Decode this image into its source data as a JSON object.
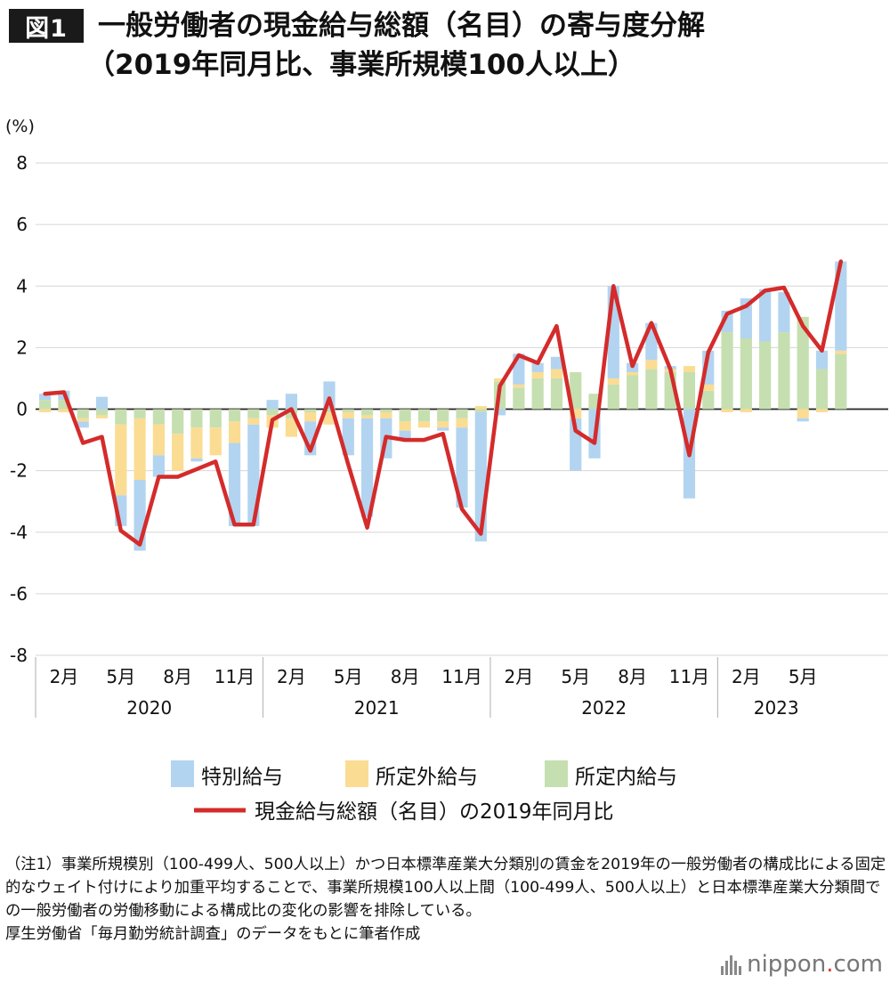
{
  "title": {
    "badge": "図1",
    "line1": "一般労働者の現金給与総額（名目）の寄与度分解",
    "line2": "（2019年同月比、事業所規模100人以上）"
  },
  "chart_data": {
    "type": "bar",
    "stacked": true,
    "unit_label": "(%)",
    "ylim": [
      -8,
      8
    ],
    "yticks": [
      8,
      6,
      4,
      2,
      0,
      -2,
      -4,
      -6,
      -8
    ],
    "x_month_labels": [
      {
        "index": 1,
        "label": "2月"
      },
      {
        "index": 4,
        "label": "5月"
      },
      {
        "index": 7,
        "label": "8月"
      },
      {
        "index": 10,
        "label": "11月"
      },
      {
        "index": 13,
        "label": "2月"
      },
      {
        "index": 16,
        "label": "5月"
      },
      {
        "index": 19,
        "label": "8月"
      },
      {
        "index": 22,
        "label": "11月"
      },
      {
        "index": 25,
        "label": "2月"
      },
      {
        "index": 28,
        "label": "5月"
      },
      {
        "index": 31,
        "label": "8月"
      },
      {
        "index": 34,
        "label": "11月"
      },
      {
        "index": 37,
        "label": "2月"
      },
      {
        "index": 40,
        "label": "5月"
      }
    ],
    "x_year_groups": [
      {
        "label": "2020",
        "start": 0,
        "count": 12
      },
      {
        "label": "2021",
        "start": 12,
        "count": 12
      },
      {
        "label": "2022",
        "start": 24,
        "count": 12
      },
      {
        "label": "2023",
        "start": 36,
        "count": 7
      }
    ],
    "series": [
      {
        "name": "所定内給与",
        "color": "#c6dfb0",
        "values": [
          0.3,
          0.3,
          -0.3,
          -0.2,
          -0.5,
          -0.3,
          -0.5,
          -0.8,
          -0.6,
          -0.6,
          -0.4,
          -0.3,
          -0.2,
          -0.3,
          -0.1,
          -0.1,
          -0.1,
          -0.2,
          -0.1,
          -0.4,
          -0.4,
          -0.4,
          -0.3,
          -0.1,
          0.9,
          0.7,
          1.0,
          1.0,
          1.2,
          0.5,
          0.8,
          1.1,
          1.3,
          1.2,
          1.2,
          0.6,
          2.5,
          2.3,
          2.2,
          2.5,
          3.0,
          1.3,
          1.8
        ]
      },
      {
        "name": "所定外給与",
        "color": "#fbdc93",
        "values": [
          -0.1,
          -0.1,
          -0.1,
          -0.1,
          -2.3,
          -2.0,
          -1.0,
          -1.2,
          -1.0,
          -0.9,
          -0.7,
          -0.2,
          -0.4,
          -0.6,
          -0.3,
          -0.4,
          -0.2,
          -0.1,
          -0.2,
          -0.3,
          -0.2,
          -0.2,
          -0.3,
          0.1,
          0.1,
          0.1,
          0.2,
          0.3,
          -0.3,
          0.0,
          0.2,
          0.1,
          0.3,
          0.1,
          0.2,
          0.2,
          -0.1,
          -0.1,
          0.0,
          0.0,
          -0.3,
          -0.1,
          0.1
        ]
      },
      {
        "name": "特別給与",
        "color": "#b2d4f0",
        "values": [
          0.2,
          0.3,
          -0.2,
          0.4,
          -1.0,
          -2.3,
          -0.7,
          0.0,
          -0.1,
          0.0,
          -2.7,
          -3.3,
          0.3,
          0.5,
          -1.1,
          0.9,
          -1.2,
          -3.2,
          -1.3,
          -0.3,
          0.0,
          -0.1,
          -2.6,
          -4.2,
          -0.2,
          1.0,
          0.3,
          0.4,
          -1.7,
          -1.6,
          3.0,
          0.3,
          1.2,
          0.1,
          -2.9,
          1.1,
          0.7,
          1.3,
          1.7,
          1.3,
          -0.1,
          0.6,
          2.9
        ]
      }
    ],
    "line": {
      "name": "現金給与総額（名目）の2019年同月比",
      "color": "#d42b2b",
      "values": [
        0.5,
        0.55,
        -1.1,
        -0.9,
        -3.95,
        -4.4,
        -2.2,
        -2.2,
        -1.95,
        -1.7,
        -3.75,
        -3.75,
        -0.35,
        0.0,
        -1.35,
        0.35,
        -1.8,
        -3.85,
        -0.9,
        -1.0,
        -1.0,
        -0.8,
        -3.25,
        -4.05,
        0.75,
        1.75,
        1.5,
        2.7,
        -0.7,
        -1.1,
        4.0,
        1.4,
        2.8,
        1.3,
        -1.5,
        1.85,
        3.1,
        3.35,
        3.85,
        3.95,
        2.7,
        1.9,
        4.8
      ]
    },
    "legend": [
      "特別給与",
      "所定外給与",
      "所定内給与",
      "現金給与総額（名目）の2019年同月比"
    ]
  },
  "notes": {
    "note1": "（注1）事業所規模別（100-499人、500人以上）かつ日本標準産業大分類別の賃金を2019年の一般労働者の構成比による固定的なウェイト付けにより加重平均することで、事業所規模100人以上間（100-499人、500人以上）と日本標準産業大分類間での一般労働者の労働移動による構成比の変化の影響を排除している。",
    "source": "厚生労働省「毎月勤労統計調査」のデータをもとに筆者作成"
  },
  "logo": {
    "text": "nippon",
    "suffix": ".com",
    "dot_color": "#e3342f"
  }
}
